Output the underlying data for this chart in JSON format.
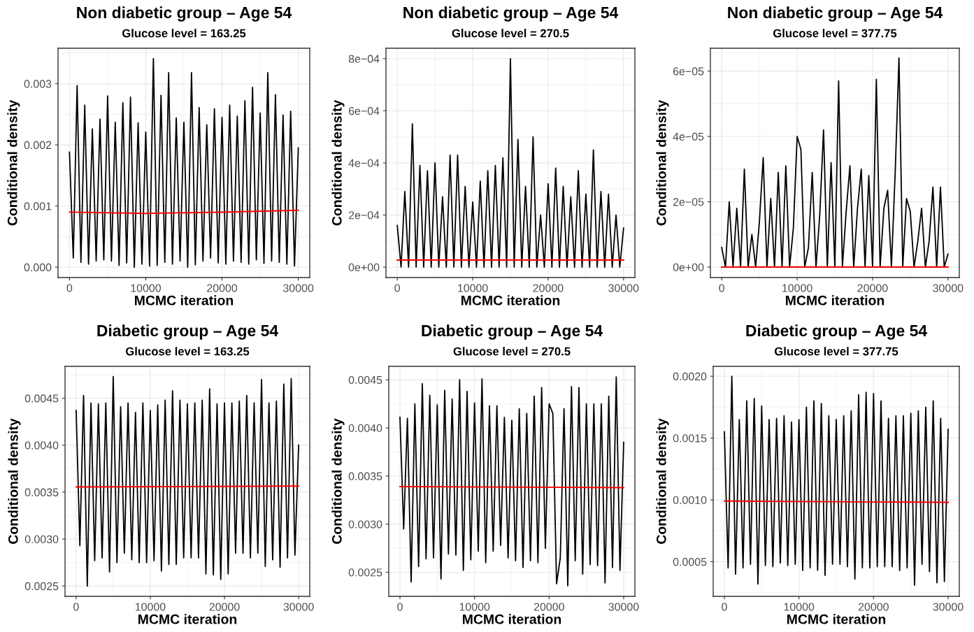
{
  "chart_data": [
    {
      "type": "line",
      "title": "Non diabetic group – Age 54",
      "subtitle": "Glucose level = 163.25",
      "xlabel": "MCMC iteration",
      "ylabel": "Conditional density",
      "xlim": [
        -1500,
        31500
      ],
      "ylim": [
        -0.00017,
        0.00358
      ],
      "xticks": [
        0,
        10000,
        20000,
        30000
      ],
      "yticks": [
        {
          "value": 0,
          "label": "0.000"
        },
        {
          "value": 0.001,
          "label": "0.001"
        },
        {
          "value": 0.002,
          "label": "0.002"
        },
        {
          "value": 0.003,
          "label": "0.003"
        }
      ],
      "grid": true,
      "series": [
        {
          "color": "#000000",
          "x": [
            0,
            500,
            1000,
            1500,
            2000,
            2500,
            3000,
            3500,
            4000,
            4500,
            5000,
            5500,
            6000,
            6500,
            7000,
            7500,
            8000,
            8500,
            9000,
            9500,
            10000,
            10500,
            11000,
            11500,
            12000,
            12500,
            13000,
            13500,
            14000,
            14500,
            15000,
            15500,
            16000,
            16500,
            17000,
            17500,
            18000,
            18500,
            19000,
            19500,
            20000,
            20500,
            21000,
            21500,
            22000,
            22500,
            23000,
            23500,
            24000,
            24500,
            25000,
            25500,
            26000,
            26500,
            27000,
            27500,
            28000,
            28500,
            29000,
            29500,
            30000
          ],
          "values": [
            0.00188,
            0.00015,
            0.00297,
            8e-05,
            0.00265,
            5e-05,
            0.00226,
            0.0001,
            0.00242,
            0.00012,
            0.0028,
            0.0001,
            0.00237,
            3e-05,
            0.00269,
            7e-05,
            0.00278,
            0.0,
            0.00236,
            5e-05,
            0.00221,
            2e-05,
            0.00341,
            3e-05,
            0.00281,
            8e-05,
            0.00318,
            5e-05,
            0.00244,
            0.0001,
            0.00237,
            0.0,
            0.00318,
            4e-05,
            0.00261,
            0.0001,
            0.00233,
            0.00015,
            0.00259,
            7e-05,
            0.00245,
            5e-05,
            0.00265,
            0.0001,
            0.00247,
            8e-05,
            0.00272,
            5e-05,
            0.00294,
            0.00012,
            0.00252,
            6e-05,
            0.00318,
            0.0001,
            0.00282,
            8e-05,
            0.00249,
            5e-05,
            0.00255,
            2e-05,
            0.00195
          ]
        },
        {
          "color": "#ff0000",
          "x": [
            0,
            10000,
            20000,
            30000
          ],
          "values": [
            0.0009,
            0.00088,
            0.0009,
            0.00093
          ]
        }
      ]
    },
    {
      "type": "line",
      "title": "Non diabetic group – Age 54",
      "subtitle": "Glucose level = 270.5",
      "xlabel": "MCMC iteration",
      "ylabel": "Conditional density",
      "xlim": [
        -1500,
        31500
      ],
      "ylim": [
        -4e-05,
        0.00084
      ],
      "xticks": [
        0,
        10000,
        20000,
        30000
      ],
      "yticks": [
        {
          "value": 0,
          "label": "0e+00"
        },
        {
          "value": 0.0002,
          "label": "2e−04"
        },
        {
          "value": 0.0004,
          "label": "4e−04"
        },
        {
          "value": 0.0006,
          "label": "6e−04"
        },
        {
          "value": 0.0008,
          "label": "8e−04"
        }
      ],
      "grid": true,
      "series": [
        {
          "color": "#000000",
          "x": [
            0,
            500,
            1000,
            1500,
            2000,
            2500,
            3000,
            3500,
            4000,
            4500,
            5000,
            5500,
            6000,
            6500,
            7000,
            7500,
            8000,
            8500,
            9000,
            9500,
            10000,
            10500,
            11000,
            11500,
            12000,
            12500,
            13000,
            13500,
            14000,
            14500,
            15000,
            15500,
            16000,
            16500,
            17000,
            17500,
            18000,
            18500,
            19000,
            19500,
            20000,
            20500,
            21000,
            21500,
            22000,
            22500,
            23000,
            23500,
            24000,
            24500,
            25000,
            25500,
            26000,
            26500,
            27000,
            27500,
            28000,
            28500,
            29000,
            29500,
            30000
          ],
          "values": [
            0.00016,
            0.0,
            0.00029,
            0.0,
            0.00055,
            0.0,
            0.00039,
            0.0,
            0.00037,
            0.0,
            0.0004,
            0.0,
            0.00027,
            0.0,
            0.00043,
            0.0,
            0.00043,
            0.0,
            0.00031,
            0.0,
            0.00025,
            0.0,
            0.00033,
            0.0,
            0.00037,
            0.0,
            0.00039,
            0.0,
            0.00042,
            0.0,
            0.0008,
            0.0,
            0.00049,
            0.0,
            0.00031,
            0.0,
            0.0005,
            0.0,
            0.0002,
            0.0,
            0.00032,
            0.0,
            0.00038,
            0.0,
            0.00031,
            0.0,
            0.00027,
            0.0,
            0.00037,
            0.0,
            0.00028,
            0.0,
            0.00045,
            0.0,
            0.00029,
            0.0,
            0.00028,
            0.0,
            0.0002,
            0.0,
            0.00015
          ]
        },
        {
          "color": "#ff0000",
          "x": [
            0,
            30000
          ],
          "values": [
            2.7e-05,
            2.7e-05
          ]
        }
      ]
    },
    {
      "type": "line",
      "title": "Non diabetic group – Age 54",
      "subtitle": "Glucose level = 377.75",
      "xlabel": "MCMC iteration",
      "ylabel": "Conditional density",
      "xlim": [
        -1500,
        31500
      ],
      "ylim": [
        -3.2e-06,
        6.7e-05
      ],
      "xticks": [
        0,
        10000,
        20000,
        30000
      ],
      "yticks": [
        {
          "value": 0,
          "label": "0e+00"
        },
        {
          "value": 2e-05,
          "label": "2e−05"
        },
        {
          "value": 4e-05,
          "label": "4e−05"
        },
        {
          "value": 6e-05,
          "label": "6e−05"
        }
      ],
      "grid": true,
      "series": [
        {
          "color": "#000000",
          "x": [
            0,
            500,
            1000,
            1500,
            2000,
            2500,
            3000,
            3500,
            4000,
            4500,
            5000,
            5500,
            6000,
            6500,
            7000,
            7500,
            8000,
            8500,
            9000,
            9500,
            10000,
            10500,
            11000,
            11500,
            12000,
            12500,
            13000,
            13500,
            14000,
            14500,
            15000,
            15500,
            16000,
            16500,
            17000,
            17500,
            18000,
            18500,
            19000,
            19500,
            20000,
            20500,
            21000,
            21500,
            22000,
            22500,
            23000,
            23500,
            24000,
            24500,
            25000,
            25500,
            26000,
            26500,
            27000,
            27500,
            28000,
            28500,
            29000,
            29500,
            30000
          ],
          "values": [
            6e-06,
            0.0,
            2e-05,
            0.0,
            1.8e-05,
            0.0,
            3e-05,
            0.0,
            1e-05,
            0.0,
            1.4e-05,
            3.35e-05,
            0.0,
            2.1e-05,
            0.0,
            2.9e-05,
            0.0,
            3.1e-05,
            0.0,
            1.2e-05,
            4e-05,
            3.6e-05,
            0.0,
            6e-06,
            2.9e-05,
            0.0,
            1.6e-05,
            4.2e-05,
            0.0,
            3.2e-05,
            0.0,
            5.7e-05,
            0.0,
            1.7e-05,
            3.1e-05,
            0.0,
            1.8e-05,
            3e-05,
            0.0,
            2.8e-05,
            0.0,
            5.75e-05,
            0.0,
            1.8e-05,
            2.35e-05,
            0.0,
            2.9e-05,
            6.4e-05,
            0.0,
            2.1e-05,
            1.7e-05,
            0.0,
            8e-06,
            1.8e-05,
            0.0,
            8e-06,
            2.45e-05,
            0.0,
            2.45e-05,
            0.0,
            4e-06
          ]
        },
        {
          "color": "#ff0000",
          "x": [
            0,
            30000
          ],
          "values": [
            0.0,
            0.0
          ]
        }
      ]
    },
    {
      "type": "line",
      "title": "Diabetic group – Age 54",
      "subtitle": "Glucose level = 163.25",
      "xlabel": "MCMC iteration",
      "ylabel": "Conditional density",
      "xlim": [
        -1500,
        31500
      ],
      "ylim": [
        0.00239,
        0.00484
      ],
      "xticks": [
        0,
        10000,
        20000,
        30000
      ],
      "yticks": [
        {
          "value": 0.0025,
          "label": "0.0025"
        },
        {
          "value": 0.003,
          "label": "0.0030"
        },
        {
          "value": 0.0035,
          "label": "0.0035"
        },
        {
          "value": 0.004,
          "label": "0.0040"
        },
        {
          "value": 0.0045,
          "label": "0.0045"
        }
      ],
      "grid": true,
      "series": [
        {
          "color": "#000000",
          "x": [
            0,
            500,
            1000,
            1500,
            2000,
            2500,
            3000,
            3500,
            4000,
            4500,
            5000,
            5500,
            6000,
            6500,
            7000,
            7500,
            8000,
            8500,
            9000,
            9500,
            10000,
            10500,
            11000,
            11500,
            12000,
            12500,
            13000,
            13500,
            14000,
            14500,
            15000,
            15500,
            16000,
            16500,
            17000,
            17500,
            18000,
            18500,
            19000,
            19500,
            20000,
            20500,
            21000,
            21500,
            22000,
            22500,
            23000,
            23500,
            24000,
            24500,
            25000,
            25500,
            26000,
            26500,
            27000,
            27500,
            28000,
            28500,
            29000,
            29500,
            30000
          ],
          "values": [
            0.00437,
            0.00293,
            0.00453,
            0.0025,
            0.00445,
            0.00277,
            0.00444,
            0.0028,
            0.00445,
            0.00265,
            0.00473,
            0.00275,
            0.00441,
            0.00285,
            0.00445,
            0.00278,
            0.00435,
            0.00275,
            0.00445,
            0.00275,
            0.00437,
            0.00277,
            0.00443,
            0.00266,
            0.00448,
            0.00273,
            0.00458,
            0.00273,
            0.00448,
            0.0028,
            0.00444,
            0.0028,
            0.00445,
            0.0028,
            0.00448,
            0.00263,
            0.0046,
            0.00262,
            0.00444,
            0.00257,
            0.00445,
            0.00263,
            0.00445,
            0.00285,
            0.00447,
            0.00285,
            0.00453,
            0.0028,
            0.00445,
            0.00285,
            0.0047,
            0.00271,
            0.00445,
            0.00278,
            0.00447,
            0.0027,
            0.00465,
            0.0028,
            0.00471,
            0.00283,
            0.004
          ]
        },
        {
          "color": "#ff0000",
          "x": [
            0,
            30000
          ],
          "values": [
            0.003555,
            0.003565
          ]
        }
      ]
    },
    {
      "type": "line",
      "title": "Diabetic group – Age 54",
      "subtitle": "Glucose level = 270.5",
      "xlabel": "MCMC iteration",
      "ylabel": "Conditional density",
      "xlim": [
        -1500,
        31500
      ],
      "ylim": [
        0.00225,
        0.00464
      ],
      "xticks": [
        0,
        10000,
        20000,
        30000
      ],
      "yticks": [
        {
          "value": 0.0025,
          "label": "0.0025"
        },
        {
          "value": 0.003,
          "label": "0.0030"
        },
        {
          "value": 0.0035,
          "label": "0.0035"
        },
        {
          "value": 0.004,
          "label": "0.0040"
        },
        {
          "value": 0.0045,
          "label": "0.0045"
        }
      ],
      "grid": true,
      "series": [
        {
          "color": "#000000",
          "x": [
            0,
            500,
            1000,
            1500,
            2000,
            2500,
            3000,
            3500,
            4000,
            4500,
            5000,
            5500,
            6000,
            6500,
            7000,
            7500,
            8000,
            8500,
            9000,
            9500,
            10000,
            10500,
            11000,
            11500,
            12000,
            12500,
            13000,
            13500,
            14000,
            14500,
            15000,
            15500,
            16000,
            16500,
            17000,
            17500,
            18000,
            18500,
            19000,
            19500,
            20000,
            20500,
            21000,
            21500,
            22000,
            22500,
            23000,
            23500,
            24000,
            24500,
            25000,
            25500,
            26000,
            26500,
            27000,
            27500,
            28000,
            28500,
            29000,
            29500,
            30000
          ],
          "values": [
            0.00411,
            0.00295,
            0.0041,
            0.0024,
            0.00425,
            0.00256,
            0.00446,
            0.00264,
            0.00434,
            0.00265,
            0.00424,
            0.00243,
            0.00439,
            0.00269,
            0.0043,
            0.00268,
            0.0045,
            0.00252,
            0.00438,
            0.00263,
            0.00426,
            0.00272,
            0.00451,
            0.0026,
            0.00423,
            0.00272,
            0.00423,
            0.00278,
            0.00411,
            0.00265,
            0.00408,
            0.00262,
            0.0042,
            0.00255,
            0.00415,
            0.00262,
            0.00433,
            0.0026,
            0.00442,
            0.00275,
            0.00425,
            0.00415,
            0.00238,
            0.00265,
            0.0042,
            0.00236,
            0.00443,
            0.00262,
            0.00442,
            0.00248,
            0.00425,
            0.00258,
            0.00425,
            0.00257,
            0.00425,
            0.00239,
            0.00433,
            0.00255,
            0.00453,
            0.00252,
            0.00385
          ]
        },
        {
          "color": "#ff0000",
          "x": [
            0,
            30000
          ],
          "values": [
            0.00339,
            0.00338
          ]
        }
      ]
    },
    {
      "type": "line",
      "title": "Diabetic group – Age 54",
      "subtitle": "Glucose level = 377.75",
      "xlabel": "MCMC iteration",
      "ylabel": "Conditional density",
      "xlim": [
        -1500,
        31500
      ],
      "ylim": [
        0.00022,
        0.00208
      ],
      "xticks": [
        0,
        10000,
        20000,
        30000
      ],
      "yticks": [
        {
          "value": 0.0005,
          "label": "0.0005"
        },
        {
          "value": 0.001,
          "label": "0.0010"
        },
        {
          "value": 0.0015,
          "label": "0.0015"
        },
        {
          "value": 0.002,
          "label": "0.0020"
        }
      ],
      "grid": true,
      "series": [
        {
          "color": "#000000",
          "x": [
            0,
            500,
            1000,
            1500,
            2000,
            2500,
            3000,
            3500,
            4000,
            4500,
            5000,
            5500,
            6000,
            6500,
            7000,
            7500,
            8000,
            8500,
            9000,
            9500,
            10000,
            10500,
            11000,
            11500,
            12000,
            12500,
            13000,
            13500,
            14000,
            14500,
            15000,
            15500,
            16000,
            16500,
            17000,
            17500,
            18000,
            18500,
            19000,
            19500,
            20000,
            20500,
            21000,
            21500,
            22000,
            22500,
            23000,
            23500,
            24000,
            24500,
            25000,
            25500,
            26000,
            26500,
            27000,
            27500,
            28000,
            28500,
            29000,
            29500,
            30000
          ],
          "values": [
            0.00155,
            0.00045,
            0.002,
            0.0004,
            0.00165,
            0.00045,
            0.0018,
            0.00048,
            0.00182,
            0.00032,
            0.00176,
            0.00047,
            0.00165,
            0.00046,
            0.00166,
            0.00049,
            0.00168,
            0.00047,
            0.00163,
            0.00048,
            0.00165,
            0.00043,
            0.00175,
            0.00045,
            0.0018,
            0.00043,
            0.00178,
            0.00039,
            0.00168,
            0.00048,
            0.00165,
            0.00048,
            0.00168,
            0.00046,
            0.00172,
            0.00036,
            0.00185,
            0.00045,
            0.00187,
            0.00045,
            0.00186,
            0.00046,
            0.0018,
            0.00046,
            0.00166,
            0.00046,
            0.00168,
            0.00043,
            0.00168,
            0.00045,
            0.0017,
            0.00031,
            0.00172,
            0.00048,
            0.00175,
            0.00042,
            0.0018,
            0.00033,
            0.00166,
            0.00034,
            0.00157
          ]
        },
        {
          "color": "#ff0000",
          "x": [
            0,
            30000
          ],
          "values": [
            0.00099,
            0.00098
          ]
        }
      ]
    }
  ]
}
